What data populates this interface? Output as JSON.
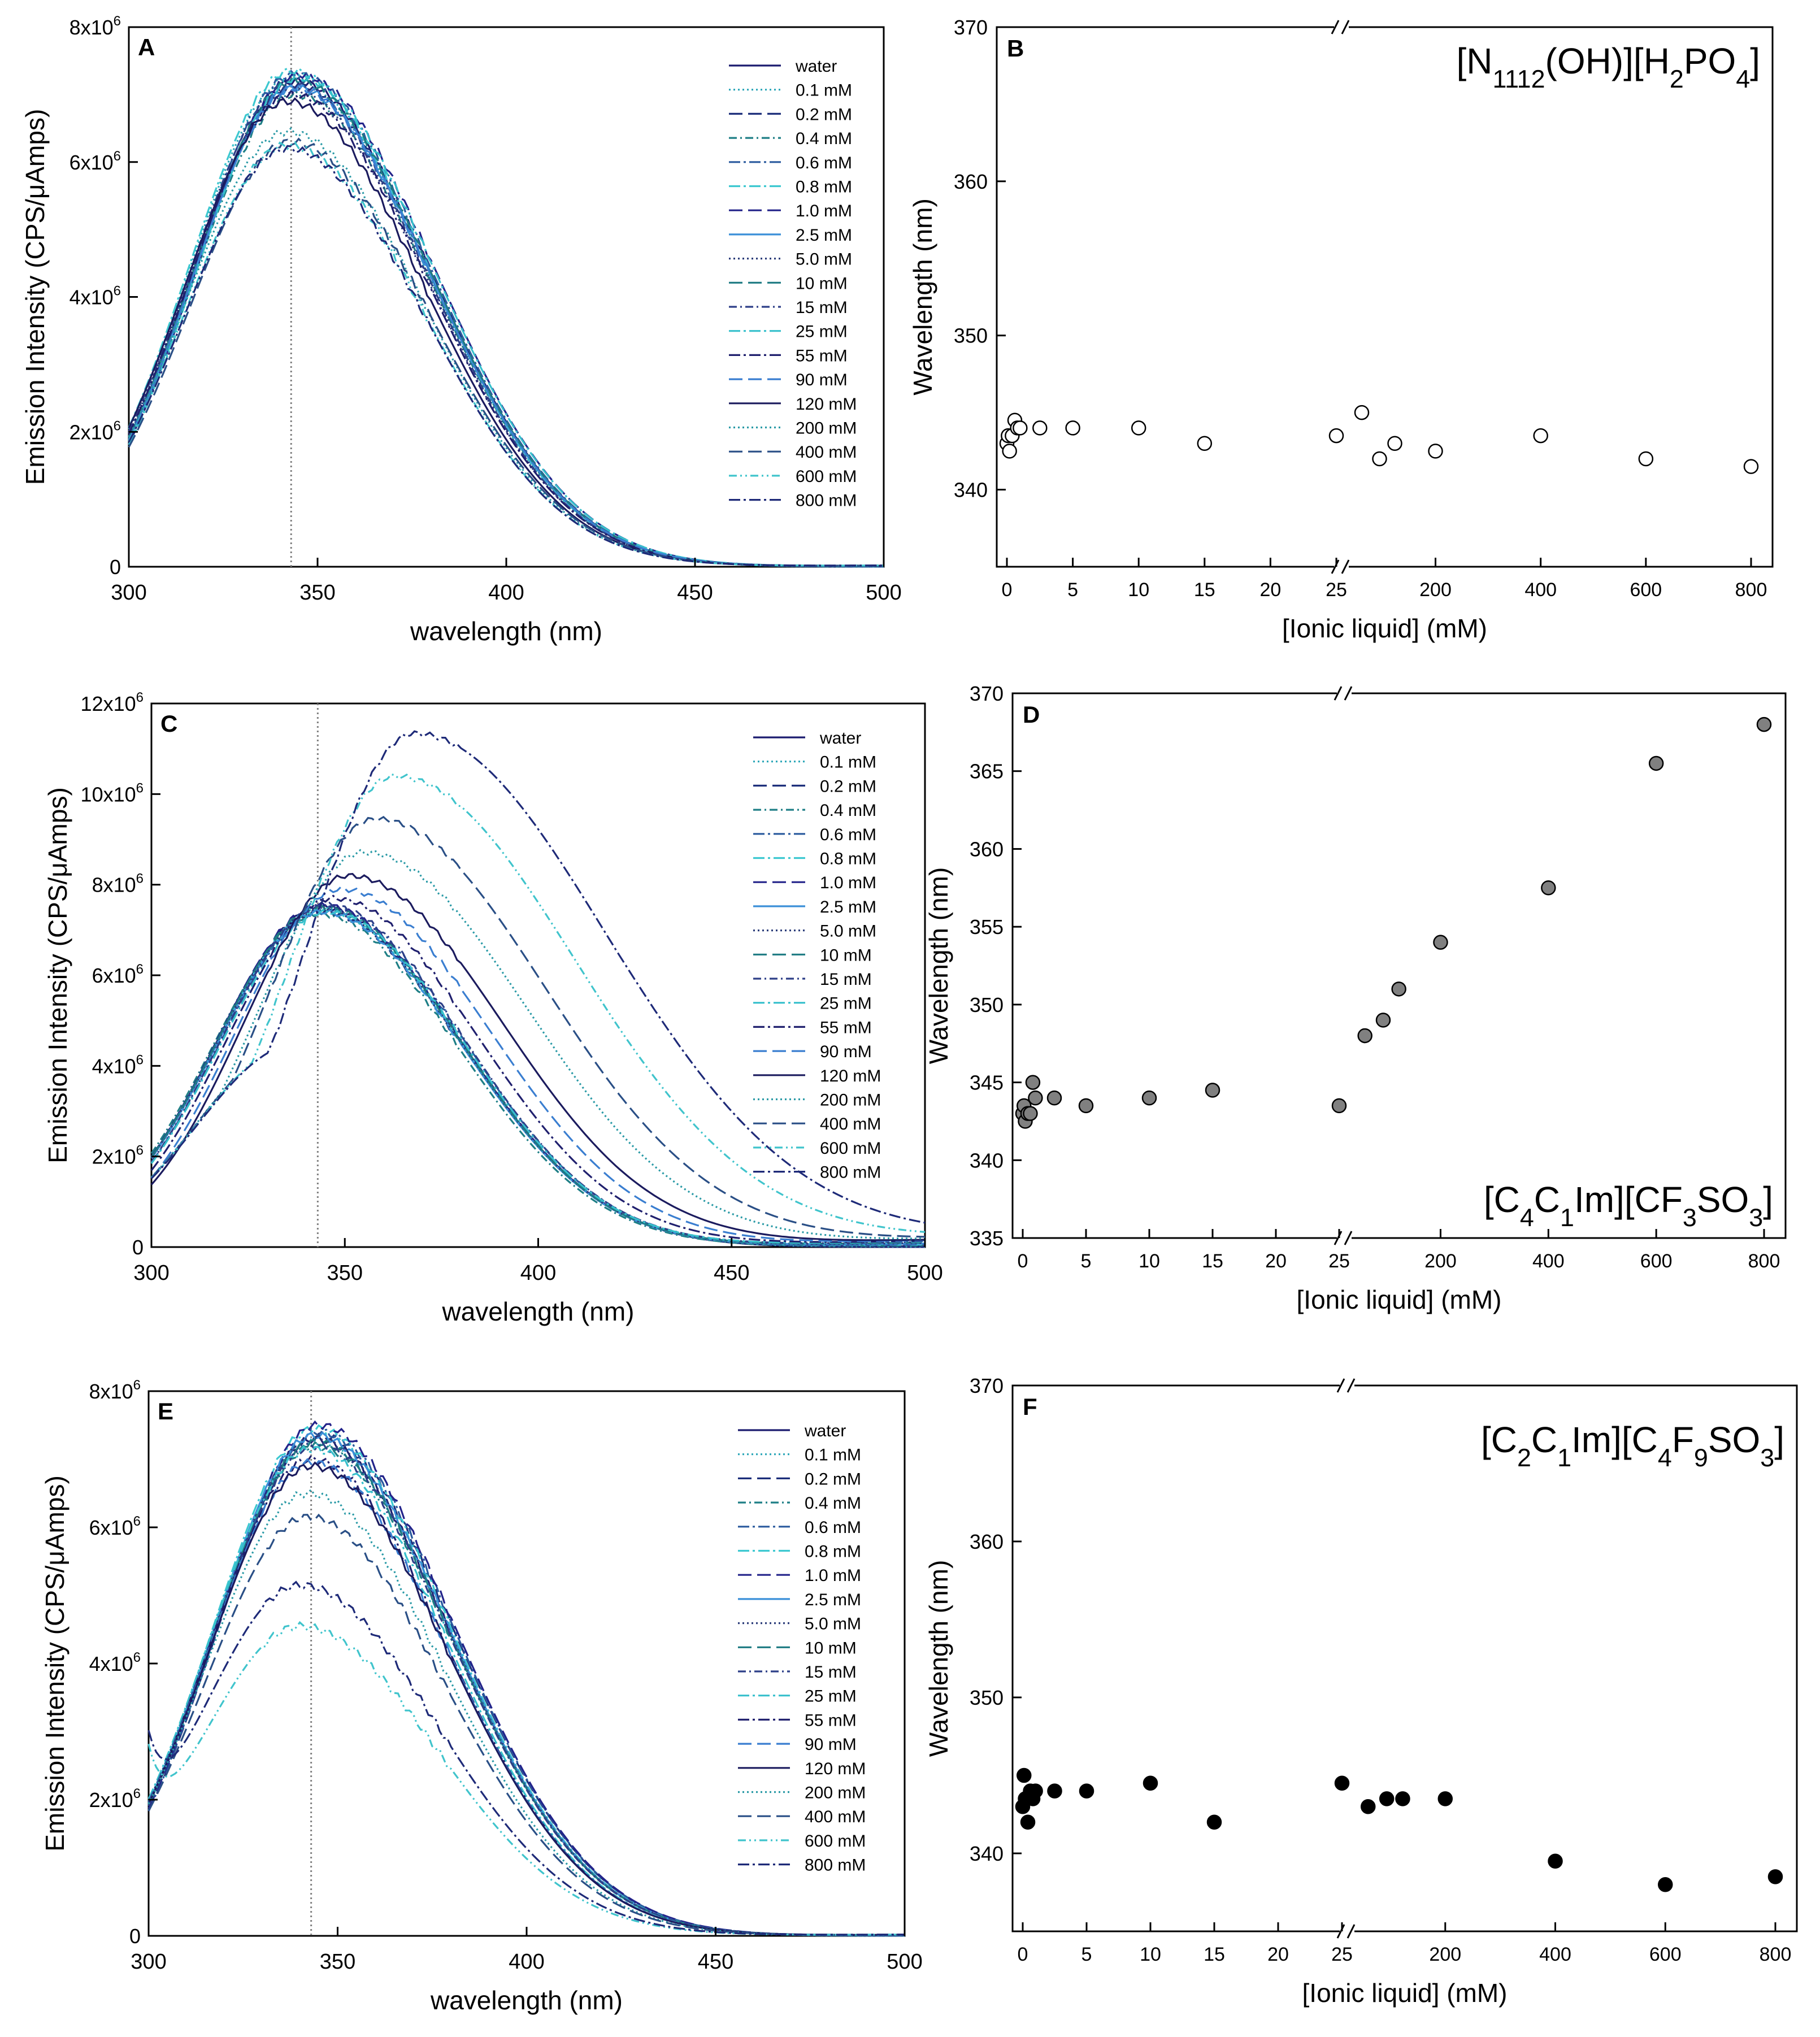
{
  "figure": {
    "colors": {
      "frame": "#000000",
      "marker_grey": "#808080",
      "marker_black": "#000000",
      "marker_white": "#ffffff",
      "guide": "#808080"
    },
    "spectrum_series_names": [
      "water",
      "0.1 mM",
      "0.2 mM",
      "0.4 mM",
      "0.6 mM",
      "0.8 mM",
      "1.0 mM",
      "2.5 mM",
      "5.0 mM",
      "10 mM",
      "15 mM",
      "25 mM",
      "55 mM",
      "90 mM",
      "120 mM",
      "200 mM",
      "400 mM",
      "600 mM",
      "800 mM"
    ],
    "spectrum_series_colors": [
      "#1a1a6e",
      "#2aa6b8",
      "#1c2e7a",
      "#1e7f86",
      "#2a5a9e",
      "#3cc8d0",
      "#23238a",
      "#3a8fd8",
      "#2c3d7a",
      "#1d7a82",
      "#2d3f88",
      "#37c0cc",
      "#20206e",
      "#3a7ed0",
      "#1b1b5e",
      "#2a9aa6",
      "#2a4f86",
      "#40c4cc",
      "#1e2a78"
    ],
    "spectrum_series_dashes": [
      "",
      "3,5",
      "24,10",
      "14,6,3,6",
      "20,6,4,6",
      "20,6,4,6",
      "24,10",
      "",
      "3,5",
      "24,10",
      "14,6,3,6",
      "20,6,4,6",
      "20,6,4,6",
      "24,10",
      "",
      "3,5",
      "24,10",
      "14,6,3,6,3,6",
      "20,6,4,6"
    ]
  },
  "chart_data": [
    {
      "panel": "A",
      "type": "line",
      "title": "",
      "xlabel": "wavelength (nm)",
      "ylabel": "Emission Intensity (CPS/μAmps)",
      "xlim": [
        300,
        500
      ],
      "ylim": [
        0,
        8000000
      ],
      "xticks": [
        "300",
        "350",
        "400",
        "450",
        "500"
      ],
      "yticks": [
        {
          "mant": "0",
          "exp": ""
        },
        {
          "mant": "2x10",
          "exp": "6"
        },
        {
          "mant": "4x10",
          "exp": "6"
        },
        {
          "mant": "6x10",
          "exp": "6"
        },
        {
          "mant": "8x10",
          "exp": "6"
        }
      ],
      "vline_x": 343,
      "legend": [
        "water",
        "0.1 mM",
        "0.2 mM",
        "0.4 mM",
        "0.6 mM",
        "0.8 mM",
        "1.0 mM",
        "2.5 mM",
        "5.0 mM",
        "10 mM",
        "15 mM",
        "25 mM",
        "55 mM",
        "90 mM",
        "120 mM",
        "200 mM",
        "400 mM",
        "600 mM",
        "800 mM"
      ],
      "series_params": [
        {
          "peak": 7200000,
          "center": 344
        },
        {
          "peak": 7250000,
          "center": 343
        },
        {
          "peak": 7150000,
          "center": 344
        },
        {
          "peak": 7000000,
          "center": 344
        },
        {
          "peak": 7300000,
          "center": 344
        },
        {
          "peak": 7350000,
          "center": 343
        },
        {
          "peak": 7300000,
          "center": 345
        },
        {
          "peak": 7100000,
          "center": 344
        },
        {
          "peak": 7050000,
          "center": 343
        },
        {
          "peak": 7200000,
          "center": 344
        },
        {
          "peak": 7150000,
          "center": 343
        },
        {
          "peak": 7250000,
          "center": 345
        },
        {
          "peak": 7000000,
          "center": 343
        },
        {
          "peak": 7100000,
          "center": 344
        },
        {
          "peak": 6900000,
          "center": 342
        },
        {
          "peak": 6450000,
          "center": 342
        },
        {
          "peak": 6300000,
          "center": 343
        },
        {
          "peak": 6250000,
          "center": 342
        },
        {
          "peak": 6200000,
          "center": 342
        }
      ]
    },
    {
      "panel": "B",
      "type": "scatter",
      "marker": "open",
      "title": "[N1112(OH)][H2PO4]",
      "xlabel": "[Ionic liquid] (mM)",
      "ylabel": "Wavelength (nm)",
      "ylim": [
        335,
        370
      ],
      "yticks": [
        "340",
        "350",
        "360",
        "370"
      ],
      "xticks_low": [
        "0",
        "5",
        "10",
        "15",
        "20",
        "25"
      ],
      "xticks_high": [
        "200",
        "400",
        "600",
        "800"
      ],
      "x_low": [
        0,
        0.1,
        0.2,
        0.4,
        0.6,
        0.8,
        1.0,
        2.5,
        5,
        10,
        15,
        25
      ],
      "y_low": [
        343,
        343.5,
        342.5,
        343.5,
        344.5,
        344,
        344,
        344,
        344,
        344,
        343,
        343.5
      ],
      "x_high": [
        55,
        90,
        120,
        200,
        400,
        600,
        800
      ],
      "y_high": [
        345,
        342,
        343,
        342.5,
        343.5,
        342,
        341.5
      ]
    },
    {
      "panel": "C",
      "type": "line",
      "title": "",
      "xlabel": "wavelength (nm)",
      "ylabel": "Emission Intensity (CPS/μAmps)",
      "xlim": [
        300,
        500
      ],
      "ylim": [
        0,
        12000000
      ],
      "xticks": [
        "300",
        "350",
        "400",
        "450",
        "500"
      ],
      "yticks": [
        {
          "mant": "0",
          "exp": ""
        },
        {
          "mant": "2x10",
          "exp": "6"
        },
        {
          "mant": "4x10",
          "exp": "6"
        },
        {
          "mant": "6x10",
          "exp": "6"
        },
        {
          "mant": "8x10",
          "exp": "6"
        },
        {
          "mant": "10x10",
          "exp": "6"
        },
        {
          "mant": "12x10",
          "exp": "6"
        }
      ],
      "vline_x": 343,
      "legend": [
        "water",
        "0.1 mM",
        "0.2 mM",
        "0.4 mM",
        "0.6 mM",
        "0.8 mM",
        "1.0 mM",
        "2.5 mM",
        "5.0 mM",
        "10 mM",
        "15 mM",
        "25 mM",
        "55 mM",
        "90 mM",
        "120 mM",
        "200 mM",
        "400 mM",
        "600 mM",
        "800 mM"
      ],
      "series_params": [
        {
          "peak": 7500000,
          "center": 344
        },
        {
          "peak": 7450000,
          "center": 344
        },
        {
          "peak": 7400000,
          "center": 344
        },
        {
          "peak": 7350000,
          "center": 343
        },
        {
          "peak": 7500000,
          "center": 345
        },
        {
          "peak": 7450000,
          "center": 344
        },
        {
          "peak": 7550000,
          "center": 344
        },
        {
          "peak": 7400000,
          "center": 344
        },
        {
          "peak": 7450000,
          "center": 344
        },
        {
          "peak": 7500000,
          "center": 344
        },
        {
          "peak": 7550000,
          "center": 345
        },
        {
          "peak": 7400000,
          "center": 345
        },
        {
          "peak": 7700000,
          "center": 347
        },
        {
          "peak": 7900000,
          "center": 349
        },
        {
          "peak": 8200000,
          "center": 351
        },
        {
          "peak": 8300000,
          "center": 355
        },
        {
          "peak": 9000000,
          "center": 358
        },
        {
          "peak": 9900000,
          "center": 363
        },
        {
          "peak": 10800000,
          "center": 368
        }
      ]
    },
    {
      "panel": "D",
      "type": "scatter",
      "marker": "grey",
      "title": "[C4C1Im][CF3SO3]",
      "xlabel": "[Ionic liquid] (mM)",
      "ylabel": "Wavelength (nm)",
      "ylim": [
        335,
        370
      ],
      "yticks": [
        "335",
        "340",
        "345",
        "350",
        "355",
        "360",
        "365",
        "370"
      ],
      "xticks_low": [
        "0",
        "5",
        "10",
        "15",
        "20",
        "25"
      ],
      "xticks_high": [
        "200",
        "400",
        "600",
        "800"
      ],
      "x_low": [
        0,
        0.1,
        0.2,
        0.4,
        0.6,
        0.8,
        1.0,
        2.5,
        5,
        10,
        15,
        25
      ],
      "y_low": [
        343,
        343.5,
        342.5,
        343,
        343,
        345,
        344,
        344,
        343.5,
        344,
        344.5,
        343.5
      ],
      "x_high": [
        55,
        90,
        120,
        200,
        400,
        600,
        800
      ],
      "y_high": [
        348,
        349,
        351,
        354,
        357.5,
        365.5,
        368
      ]
    },
    {
      "panel": "E",
      "type": "line",
      "title": "",
      "xlabel": "wavelength (nm)",
      "ylabel": "Emission Intensity (CPS/μAmps)",
      "xlim": [
        300,
        500
      ],
      "ylim": [
        0,
        8000000
      ],
      "xticks": [
        "300",
        "350",
        "400",
        "450",
        "500"
      ],
      "yticks": [
        {
          "mant": "0",
          "exp": ""
        },
        {
          "mant": "2x10",
          "exp": "6"
        },
        {
          "mant": "4x10",
          "exp": "6"
        },
        {
          "mant": "6x10",
          "exp": "6"
        },
        {
          "mant": "8x10",
          "exp": "6"
        }
      ],
      "vline_x": 343,
      "legend": [
        "water",
        "0.1 mM",
        "0.2 mM",
        "0.4 mM",
        "0.6 mM",
        "0.8 mM",
        "1.0 mM",
        "2.5 mM",
        "5.0 mM",
        "10 mM",
        "15 mM",
        "25 mM",
        "55 mM",
        "90 mM",
        "120 mM",
        "200 mM",
        "400 mM",
        "600 mM",
        "800 mM"
      ],
      "series_params": [
        {
          "peak": 7300000,
          "center": 344
        },
        {
          "peak": 7250000,
          "center": 344
        },
        {
          "peak": 7350000,
          "center": 345
        },
        {
          "peak": 7200000,
          "center": 344
        },
        {
          "peak": 7400000,
          "center": 345
        },
        {
          "peak": 7450000,
          "center": 344
        },
        {
          "peak": 7500000,
          "center": 345
        },
        {
          "peak": 7350000,
          "center": 344
        },
        {
          "peak": 7300000,
          "center": 344
        },
        {
          "peak": 7250000,
          "center": 344
        },
        {
          "peak": 7200000,
          "center": 344
        },
        {
          "peak": 7150000,
          "center": 343
        },
        {
          "peak": 7000000,
          "center": 343
        },
        {
          "peak": 6950000,
          "center": 343
        },
        {
          "peak": 6900000,
          "center": 343
        },
        {
          "peak": 6500000,
          "center": 342
        },
        {
          "peak": 6150000,
          "center": 342
        },
        {
          "peak": 4550000,
          "center": 340
        },
        {
          "peak": 5150000,
          "center": 340
        }
      ]
    },
    {
      "panel": "F",
      "type": "scatter",
      "marker": "black",
      "title": "[C2C1Im][C4F9SO3]",
      "xlabel": "[Ionic liquid] (mM)",
      "ylabel": "Wavelength (nm)",
      "ylim": [
        335,
        370
      ],
      "yticks": [
        "340",
        "350",
        "360",
        "370"
      ],
      "xticks_low": [
        "0",
        "5",
        "10",
        "15",
        "20",
        "25"
      ],
      "xticks_high": [
        "200",
        "400",
        "600",
        "800"
      ],
      "x_low": [
        0,
        0.1,
        0.2,
        0.4,
        0.6,
        0.8,
        1.0,
        2.5,
        5,
        10,
        15,
        25
      ],
      "y_low": [
        343,
        345,
        343.5,
        342,
        344,
        343.5,
        344,
        344,
        344,
        344.5,
        342,
        344.5
      ],
      "x_high": [
        55,
        90,
        120,
        200,
        400,
        600,
        800
      ],
      "y_high": [
        343,
        343.5,
        343.5,
        343.5,
        339.5,
        338,
        338.5
      ]
    }
  ]
}
